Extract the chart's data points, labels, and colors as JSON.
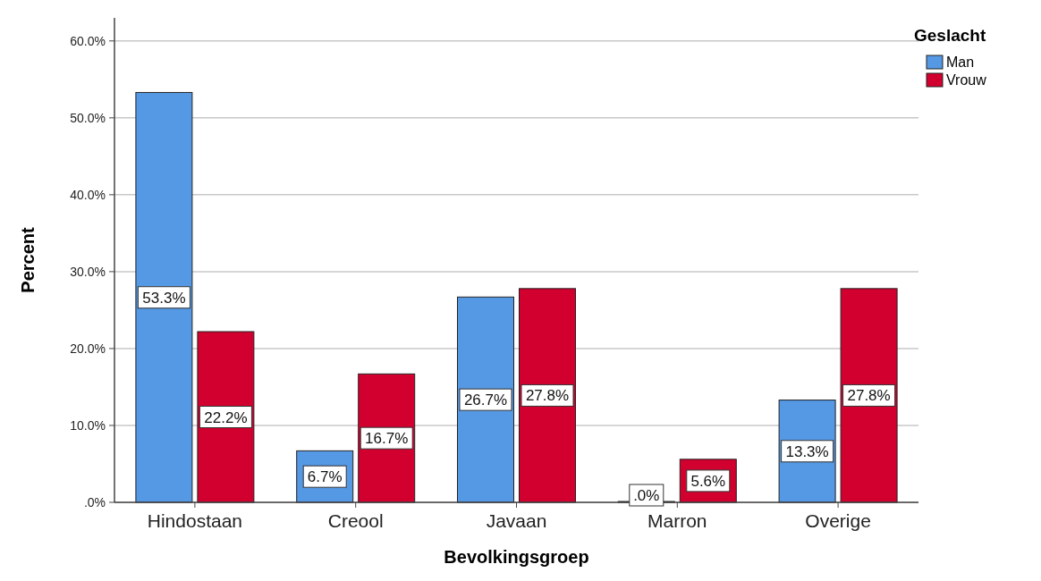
{
  "chart_data": {
    "type": "bar",
    "xlabel": "Bevolkingsgroep",
    "ylabel": "Percent",
    "legend_title": "Geslacht",
    "legend": "top right",
    "grid": "y",
    "categories": [
      "Hindostaan",
      "Creool",
      "Javaan",
      "Marron",
      "Overige"
    ],
    "series": [
      {
        "name": "Man",
        "color": "#5598e3",
        "values": [
          53.3,
          6.7,
          26.7,
          0,
          13.3
        ],
        "value_labels": [
          "53.3%",
          "6.7%",
          "26.7%",
          ".0%",
          "13.3%"
        ]
      },
      {
        "name": "Vrouw",
        "color": "#d2002e",
        "values": [
          22.2,
          16.7,
          27.8,
          5.6,
          27.8
        ],
        "value_labels": [
          "22.2%",
          "16.7%",
          "27.8%",
          "5.6%",
          "27.8%"
        ]
      }
    ],
    "ylim": [
      0,
      63
    ],
    "yticks": [
      {
        "value": 0,
        "label": ".0%"
      },
      {
        "value": 10,
        "label": "10.0%"
      },
      {
        "value": 20,
        "label": "20.0%"
      },
      {
        "value": 30,
        "label": "30.0%"
      },
      {
        "value": 40,
        "label": "40.0%"
      },
      {
        "value": 50,
        "label": "50.0%"
      },
      {
        "value": 60,
        "label": "60.0%"
      }
    ]
  }
}
